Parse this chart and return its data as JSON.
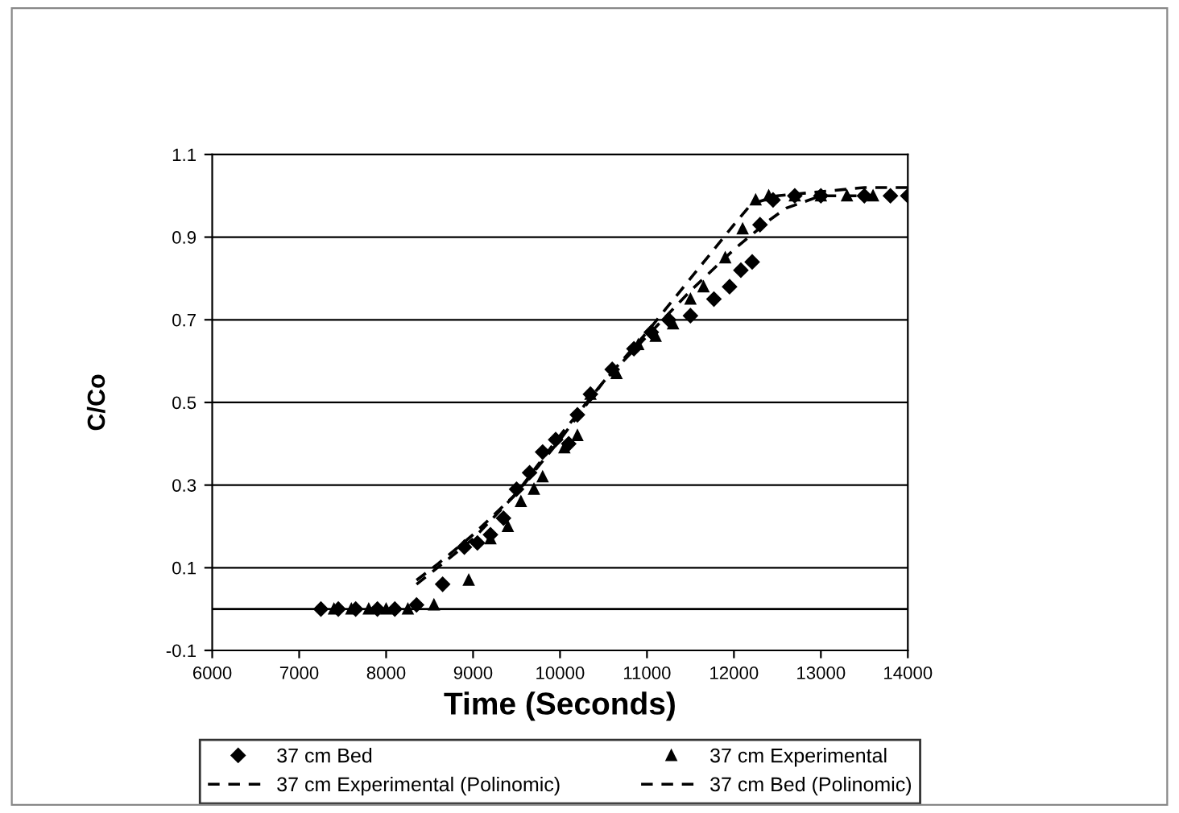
{
  "chart_data": {
    "type": "scatter",
    "xlabel": "Time (Seconds)",
    "ylabel": "C/Co",
    "xlim": [
      6000,
      14000
    ],
    "xticks": [
      6000,
      7000,
      8000,
      9000,
      10000,
      11000,
      12000,
      13000,
      14000
    ],
    "ylim": [
      -0.1,
      1.1
    ],
    "yticks": [
      -0.1,
      0.1,
      0.3,
      0.5,
      0.7,
      0.9,
      1.1
    ],
    "grid": "y",
    "legend": "bottom",
    "ref_lines": [
      {
        "axis": "y",
        "value": 0,
        "color": "#000000"
      }
    ],
    "series": [
      {
        "name": "37 cm Bed",
        "marker": "diamond",
        "color": "#000000",
        "x": [
          7250,
          7450,
          7650,
          7900,
          8100,
          8350,
          8650,
          8900,
          9050,
          9200,
          9350,
          9500,
          9650,
          9800,
          9950,
          10100,
          10200,
          10350,
          10600,
          10850,
          11050,
          11250,
          11500,
          11770,
          11950,
          12080,
          12210,
          12300,
          12450,
          12700,
          13000,
          13500,
          13800,
          14000
        ],
        "values": [
          0,
          0,
          0,
          0,
          0,
          0.01,
          0.06,
          0.15,
          0.16,
          0.18,
          0.22,
          0.29,
          0.33,
          0.38,
          0.41,
          0.4,
          0.47,
          0.52,
          0.58,
          0.63,
          0.67,
          0.7,
          0.71,
          0.75,
          0.78,
          0.82,
          0.84,
          0.93,
          0.99,
          1.0,
          1.0,
          1.0,
          1.0,
          1.0
        ]
      },
      {
        "name": "37 cm Experimental",
        "marker": "triangle",
        "color": "#000000",
        "x": [
          7400,
          7600,
          7800,
          8000,
          8250,
          8550,
          8950,
          9200,
          9400,
          9550,
          9700,
          9800,
          10050,
          10200,
          10350,
          10650,
          10900,
          11100,
          11300,
          11500,
          11650,
          11900,
          12100,
          12250,
          12400,
          12700,
          13000,
          13300,
          13600
        ],
        "values": [
          0,
          0,
          0,
          0,
          0,
          0.01,
          0.07,
          0.17,
          0.2,
          0.26,
          0.29,
          0.32,
          0.39,
          0.42,
          0.52,
          0.57,
          0.64,
          0.66,
          0.69,
          0.75,
          0.78,
          0.85,
          0.92,
          0.99,
          1.0,
          1.0,
          1.0,
          1.0,
          1.0
        ]
      },
      {
        "name": "37 cm Experimental (Polinomic)",
        "type": "line",
        "line_style": "dashed",
        "color": "#000000",
        "x": [
          8350,
          8600,
          9000,
          9500,
          10000,
          10500,
          11000,
          11500,
          12000,
          12200,
          12500,
          13000,
          13500,
          14000
        ],
        "values": [
          0.07,
          0.11,
          0.18,
          0.28,
          0.41,
          0.55,
          0.67,
          0.8,
          0.93,
          0.98,
          1.0,
          1.01,
          1.02,
          1.02
        ]
      },
      {
        "name": "37 cm Bed (Polinomic)",
        "type": "line",
        "line_style": "dashed",
        "color": "#000000",
        "x": [
          8350,
          8650,
          9000,
          9500,
          10000,
          10500,
          11000,
          11500,
          12000,
          12400,
          12600,
          13000,
          13500
        ],
        "values": [
          0.06,
          0.11,
          0.17,
          0.28,
          0.42,
          0.55,
          0.66,
          0.77,
          0.87,
          0.94,
          0.97,
          1.0,
          1.0
        ]
      }
    ]
  }
}
